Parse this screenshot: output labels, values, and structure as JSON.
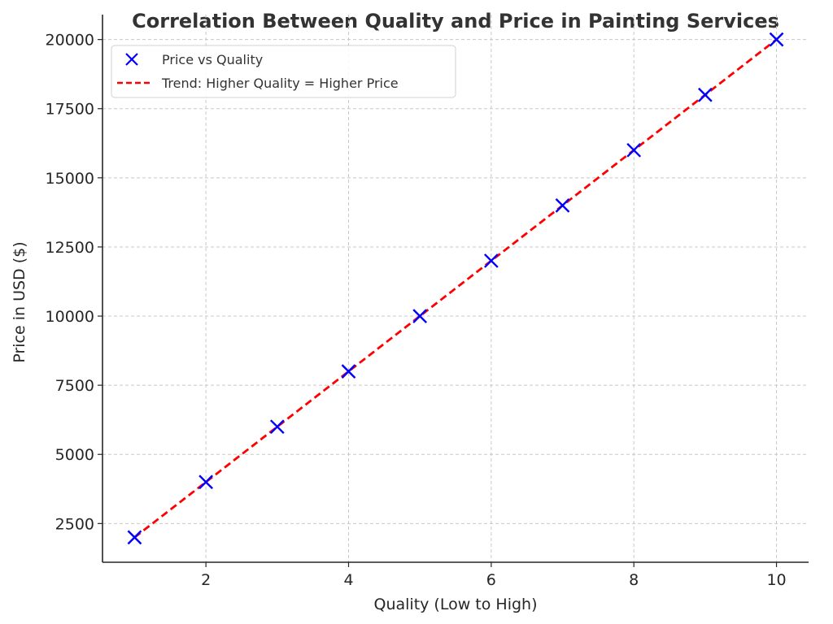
{
  "chart_data": {
    "type": "scatter",
    "title": "Correlation Between Quality and Price in Painting Services",
    "xlabel": "Quality (Low to High)",
    "ylabel": "Price in USD ($)",
    "x": [
      1,
      2,
      3,
      4,
      5,
      6,
      7,
      8,
      9,
      10
    ],
    "series": [
      {
        "name": "Price vs Quality",
        "kind": "scatter",
        "marker": "x",
        "color": "#0000ff",
        "values": [
          2000,
          4000,
          6000,
          8000,
          10000,
          12000,
          14000,
          16000,
          18000,
          20000
        ]
      },
      {
        "name": "Trend: Higher Quality = Higher Price",
        "kind": "line",
        "linestyle": "dashed",
        "color": "#ff0000",
        "values": [
          2000,
          4000,
          6000,
          8000,
          10000,
          12000,
          14000,
          16000,
          18000,
          20000
        ]
      }
    ],
    "xticks": [
      2,
      4,
      6,
      8,
      10
    ],
    "yticks": [
      2500,
      5000,
      7500,
      10000,
      12500,
      15000,
      17500,
      20000
    ],
    "xlim": [
      0.55,
      10.45
    ],
    "ylim": [
      1100,
      20900
    ],
    "grid": true,
    "legend_position": "upper left"
  },
  "legend": {
    "items": [
      {
        "label": "Price vs Quality",
        "color": "#0000ff",
        "symbol": "x-marker"
      },
      {
        "label": "Trend: Higher Quality = Higher Price",
        "color": "#ff0000",
        "symbol": "dashed-line"
      }
    ]
  }
}
